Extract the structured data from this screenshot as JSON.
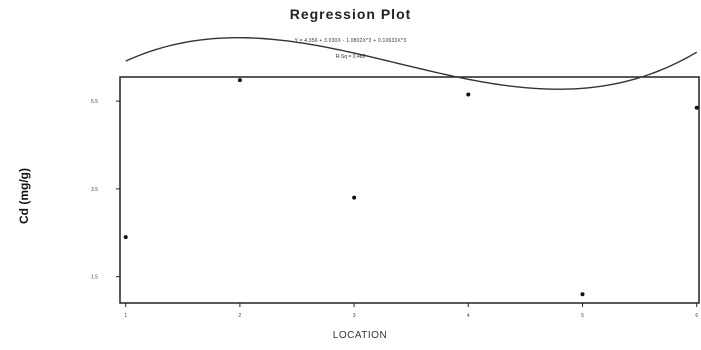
{
  "chart_data": {
    "type": "scatter",
    "title": "Regression Plot",
    "equation": "Y = 4.356 + 3.030X - 1.0802X^2 + 0.10633X^3",
    "r_squared": "R-Sq = 0.486",
    "xlabel": "LOCATION",
    "ylabel": "Cd (mg/g)",
    "xlim": [
      0.95,
      6.02
    ],
    "ylim": [
      0.9,
      6.05
    ],
    "xticks": [
      1,
      2,
      3,
      4,
      5,
      6
    ],
    "yticks": [
      1.5,
      3.5,
      5.5
    ],
    "grid": false,
    "points": [
      {
        "x": 1,
        "y": 2.4
      },
      {
        "x": 2,
        "y": 5.98
      },
      {
        "x": 3,
        "y": 3.3
      },
      {
        "x": 4,
        "y": 5.65
      },
      {
        "x": 5,
        "y": 1.1
      },
      {
        "x": 6,
        "y": 5.35
      }
    ],
    "fit_curve": {
      "type": "cubic",
      "coefficients": [
        4.356,
        3.03,
        -1.0802,
        0.10633
      ]
    }
  }
}
